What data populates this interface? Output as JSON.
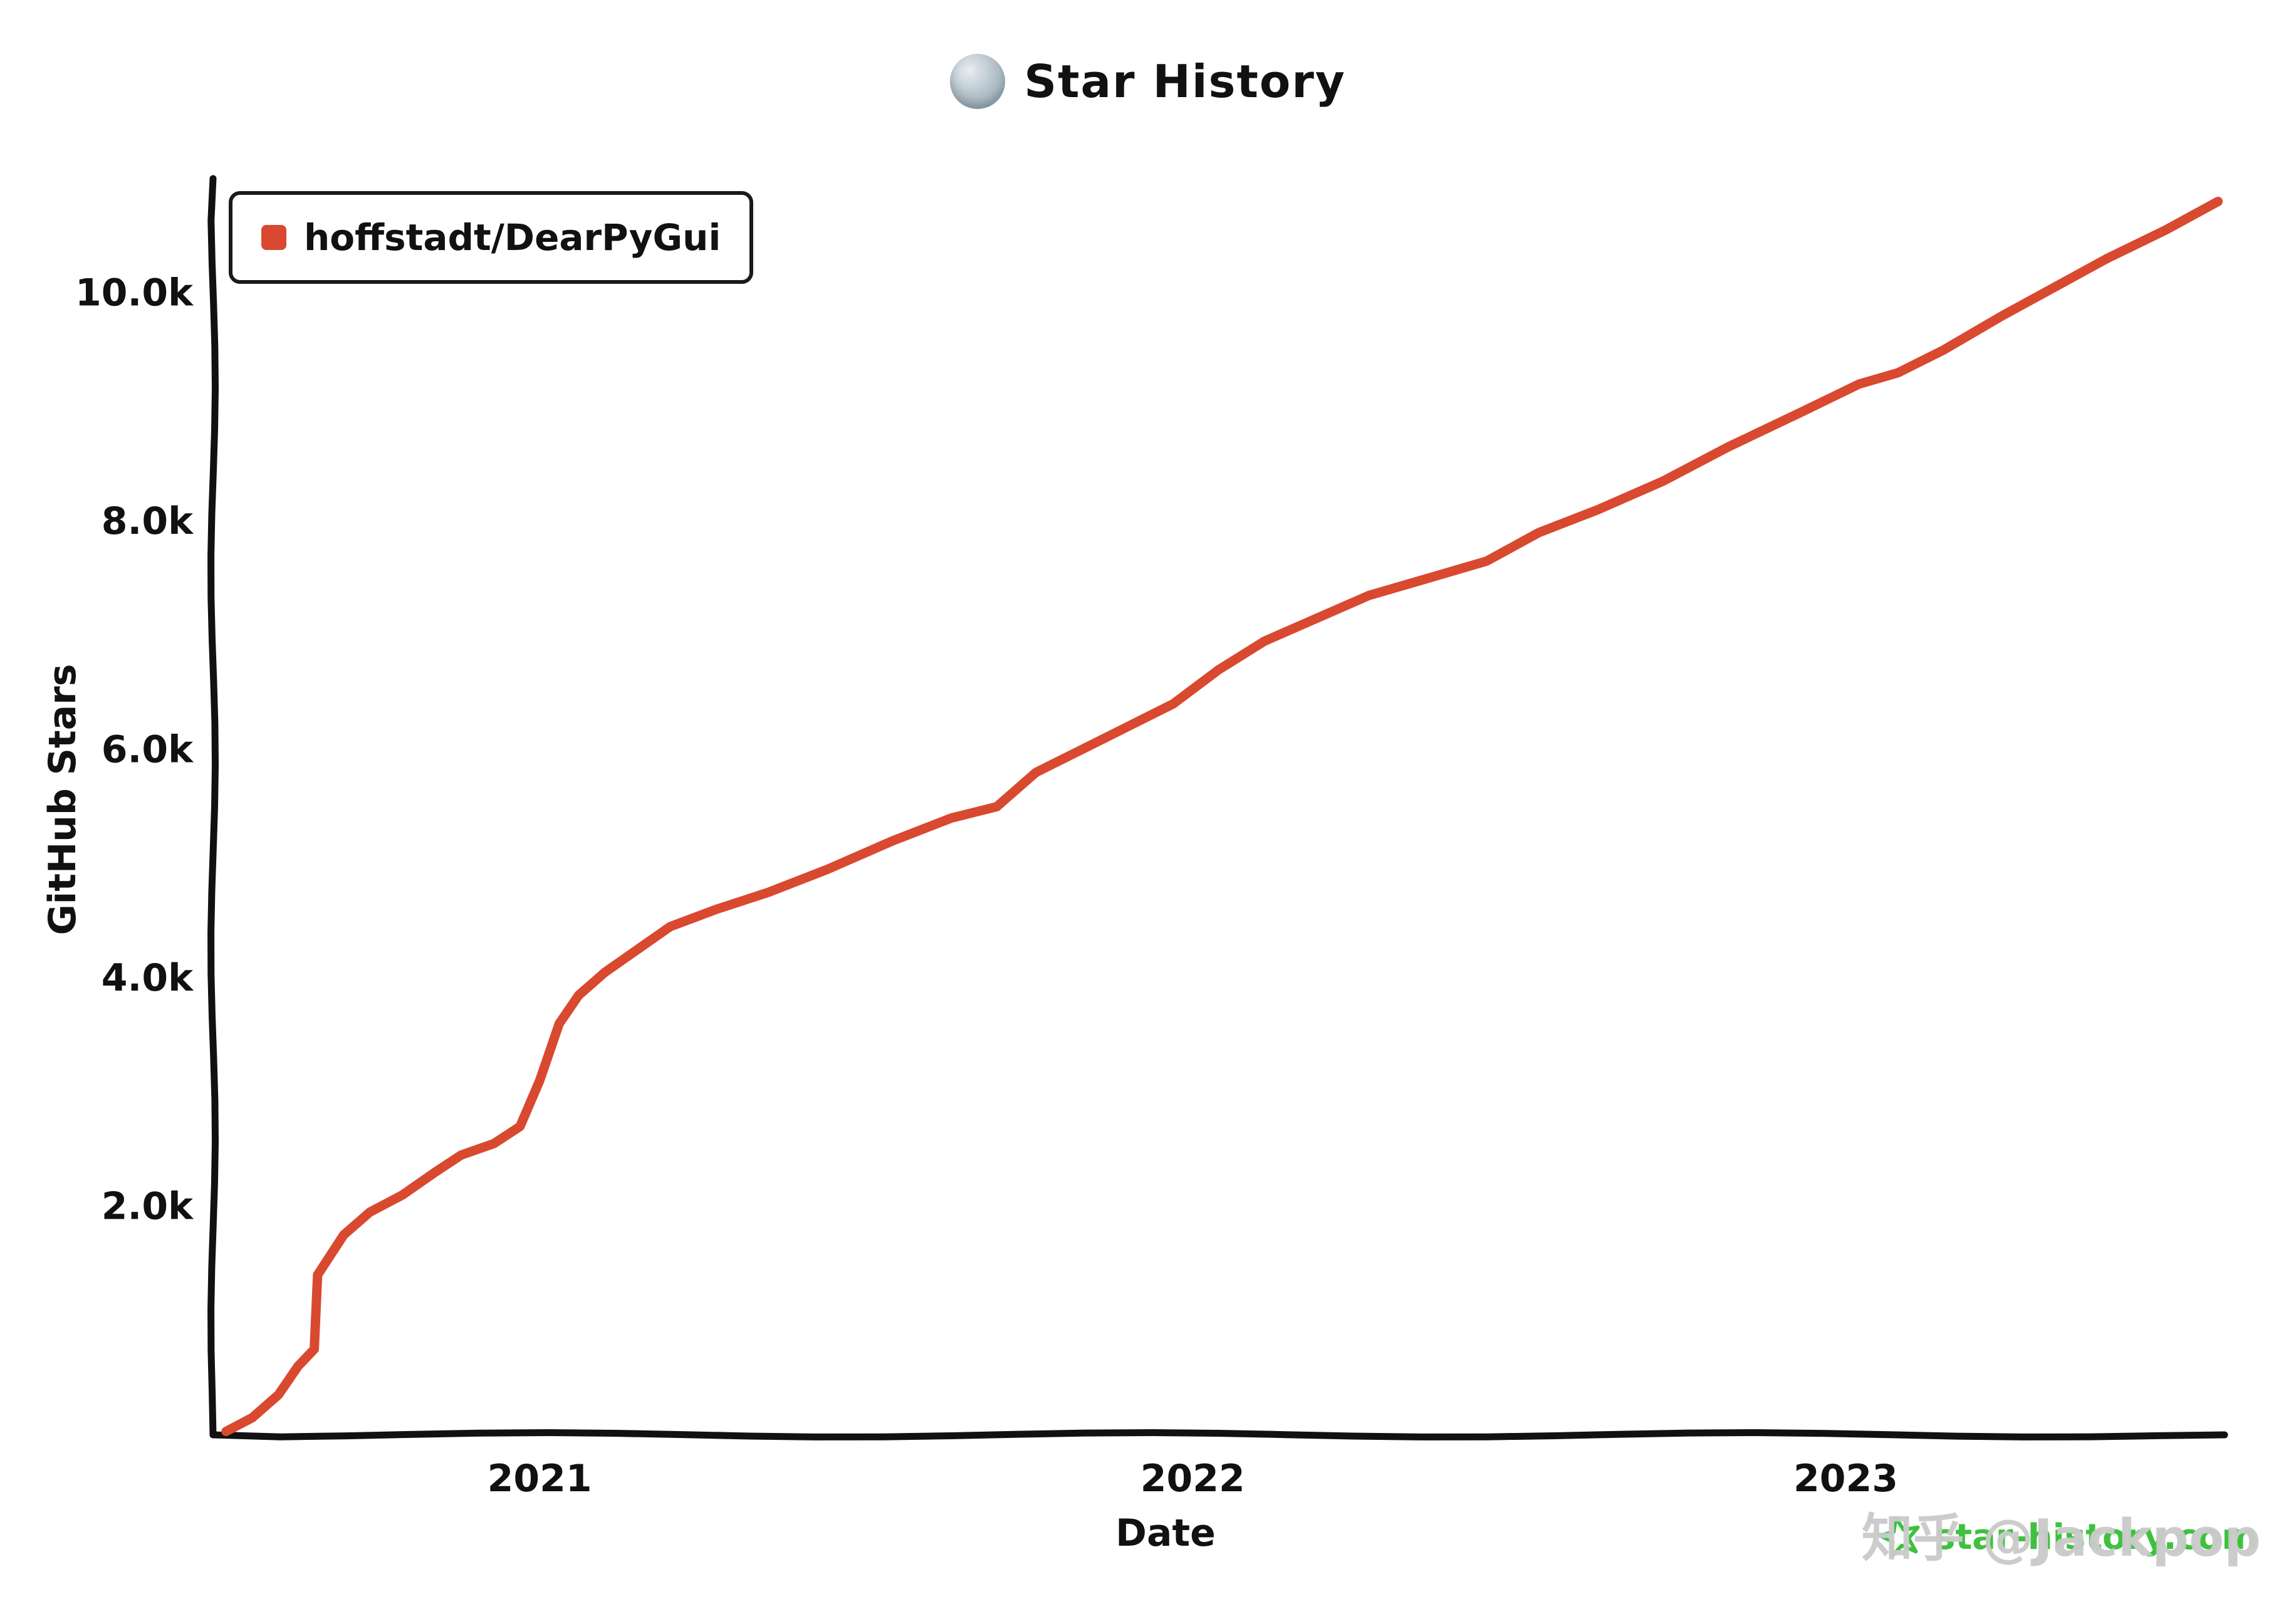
{
  "header": {
    "title": "Star History"
  },
  "legend": {
    "series_label": "hoffstadt/DearPyGui",
    "series_color": "#d8492f"
  },
  "axes": {
    "y_label": "GitHub Stars",
    "x_label": "Date"
  },
  "watermark": {
    "text": "知乎 @Jackpop"
  },
  "branding": {
    "site": "star-history.com",
    "star_color": "#3ec13e"
  },
  "colors": {
    "axis": "#111111",
    "line": "#d8492f",
    "background": "#ffffff"
  },
  "chart_data": {
    "type": "line",
    "title": "Star History",
    "xlabel": "Date",
    "ylabel": "GitHub Stars",
    "xlim": [
      2020.5,
      2023.58
    ],
    "ylim": [
      0,
      11000
    ],
    "grid": false,
    "legend_position": "top-left",
    "x_ticks": [
      {
        "value": 2021,
        "label": "2021"
      },
      {
        "value": 2022,
        "label": "2022"
      },
      {
        "value": 2023,
        "label": "2023"
      }
    ],
    "y_ticks": [
      {
        "value": 2000,
        "label": "2.0k"
      },
      {
        "value": 4000,
        "label": "4.0k"
      },
      {
        "value": 6000,
        "label": "6.0k"
      },
      {
        "value": 8000,
        "label": "8.0k"
      },
      {
        "value": 10000,
        "label": "10.0k"
      }
    ],
    "series": [
      {
        "name": "hoffstadt/DearPyGui",
        "color": "#d8492f",
        "x": [
          2020.52,
          2020.56,
          2020.6,
          2020.63,
          2020.655,
          2020.66,
          2020.7,
          2020.74,
          2020.79,
          2020.84,
          2020.88,
          2020.93,
          2020.97,
          2021.0,
          2021.03,
          2021.06,
          2021.1,
          2021.15,
          2021.2,
          2021.27,
          2021.35,
          2021.44,
          2021.54,
          2021.63,
          2021.7,
          2021.76,
          2021.83,
          2021.9,
          2021.97,
          2022.04,
          2022.11,
          2022.19,
          2022.27,
          2022.36,
          2022.45,
          2022.53,
          2022.62,
          2022.72,
          2022.82,
          2022.93,
          2023.02,
          2023.08,
          2023.15,
          2023.24,
          2023.32,
          2023.4,
          2023.49,
          2023.57
        ],
        "y": [
          30,
          150,
          350,
          600,
          750,
          1400,
          1750,
          1950,
          2100,
          2300,
          2450,
          2550,
          2700,
          3100,
          3600,
          3850,
          4050,
          4250,
          4450,
          4600,
          4750,
          4950,
          5200,
          5400,
          5500,
          5800,
          6000,
          6200,
          6400,
          6700,
          6950,
          7150,
          7350,
          7500,
          7650,
          7900,
          8100,
          8350,
          8650,
          8950,
          9200,
          9300,
          9500,
          9800,
          10050,
          10300,
          10550,
          10800
        ]
      }
    ]
  }
}
